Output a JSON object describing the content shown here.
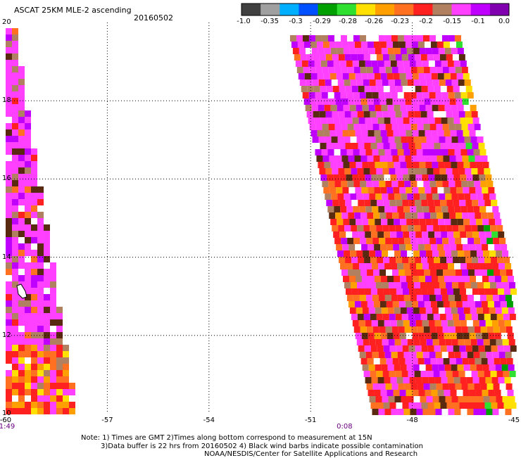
{
  "header": {
    "title": "ASCAT 25KM MLE-2 ascending",
    "date": "20160502"
  },
  "colorbar": {
    "colors": [
      "#404040",
      "#a0a0a0",
      "#00b0ff",
      "#0050ff",
      "#00a000",
      "#30e030",
      "#ffe000",
      "#ffa000",
      "#ff7020",
      "#ff2020",
      "#b08060",
      "#ff40ff",
      "#c000ff",
      "#8000b0"
    ],
    "labels": [
      "-1.0",
      "-0.35",
      "-0.3",
      "-0.29",
      "-0.28",
      "-0.26",
      "-0.23",
      "-0.2",
      "-0.15",
      "-0.1",
      "0.0"
    ]
  },
  "map": {
    "lon_range": [
      -60,
      -45
    ],
    "lat_range": [
      10,
      20
    ],
    "x_ticks": [
      "-60",
      "-57",
      "-54",
      "-51",
      "-48",
      "-45"
    ],
    "y_ticks": [
      "20",
      "18",
      "16",
      "14",
      "12",
      "10"
    ],
    "times": [
      {
        "label": "1:49",
        "lon": -60
      },
      {
        "label": "0:08",
        "lon": -50
      }
    ]
  },
  "footer": {
    "line1": "Note: 1) Times are GMT 2)Times along bottom correspond to measurement at 15N",
    "line2": "3)Data buffer is 22 hrs from 20160502 4) Black wind barbs indicate possible contamination",
    "line3": "NOAA/NESDIS/Center for Satellite Applications and Research"
  }
}
